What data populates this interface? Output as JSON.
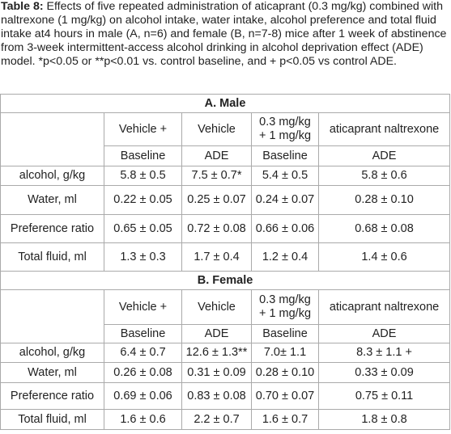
{
  "caption": {
    "label": "Table 8:",
    "text": " Effects of five repeated administration of aticaprant (0.3 mg/kg) combined with naltrexone (1 mg/kg) on alcohol intake, water intake, alcohol preference and total fluid intake at4 hours in male (A, n=6) and female (B, n=7-8) mice after 1 week of abstinence from 3-week intermittent-access alcohol drinking in alcohol deprivation effect (ADE) model. *p<0.05 or **p<0.01 vs. control baseline, and + p<0.05 vs control ADE."
  },
  "sections": [
    {
      "title": "A. Male",
      "header_top": [
        [
          "Vehicle +"
        ],
        [
          "Vehicle"
        ],
        [
          "0.3 mg/kg",
          "+ 1 mg/kg"
        ],
        [
          "aticaprant naltrexone"
        ]
      ],
      "header_bottom": [
        "Baseline",
        "ADE",
        "Baseline",
        "ADE"
      ],
      "rows": [
        [
          "alcohol, g/kg",
          "5.8 ± 0.5",
          "7.5 ± 0.7*",
          "5.4 ± 0.5",
          "5.8 ± 0.6"
        ],
        [
          "Water, ml",
          "0.22 ± 0.05",
          "0.25 ± 0.07",
          "0.24 ± 0.07",
          "0.28 ± 0.10"
        ],
        [
          "Preference ratio",
          "0.65 ± 0.05",
          "0.72 ± 0.08",
          "0.66 ± 0.06",
          "0.68 ± 0.08"
        ],
        [
          "Total fluid, ml",
          "1.3 ± 0.3",
          "1.7 ± 0.4",
          "1.2 ± 0.4",
          "1.4 ± 0.6"
        ]
      ]
    },
    {
      "title": "B. Female",
      "header_top": [
        [
          "Vehicle +"
        ],
        [
          "Vehicle"
        ],
        [
          "0.3 mg/kg",
          "+ 1 mg/kg"
        ],
        [
          "aticaprant naltrexone"
        ]
      ],
      "header_bottom": [
        "Baseline",
        "ADE",
        "Baseline",
        "ADE"
      ],
      "rows": [
        [
          "alcohol, g/kg",
          "6.4 ± 0.7",
          "12.6 ± 1.3**",
          "7.0± 1.1",
          "8.3 ± 1.1 +"
        ],
        [
          "Water, ml",
          "0.26 ± 0.08",
          "0.31 ± 0.09",
          "0.28 ± 0.10",
          "0.33 ± 0.09"
        ],
        [
          "Preference ratio",
          "0.69 ± 0.06",
          "0.83 ± 0.08",
          "0.70 ± 0.07",
          "0.75 ± 0.11"
        ],
        [
          "Total fluid, ml",
          "1.6 ± 0.6",
          "2.2 ± 0.7",
          "1.6 ± 0.7",
          "1.8 ± 0.8"
        ]
      ]
    }
  ]
}
